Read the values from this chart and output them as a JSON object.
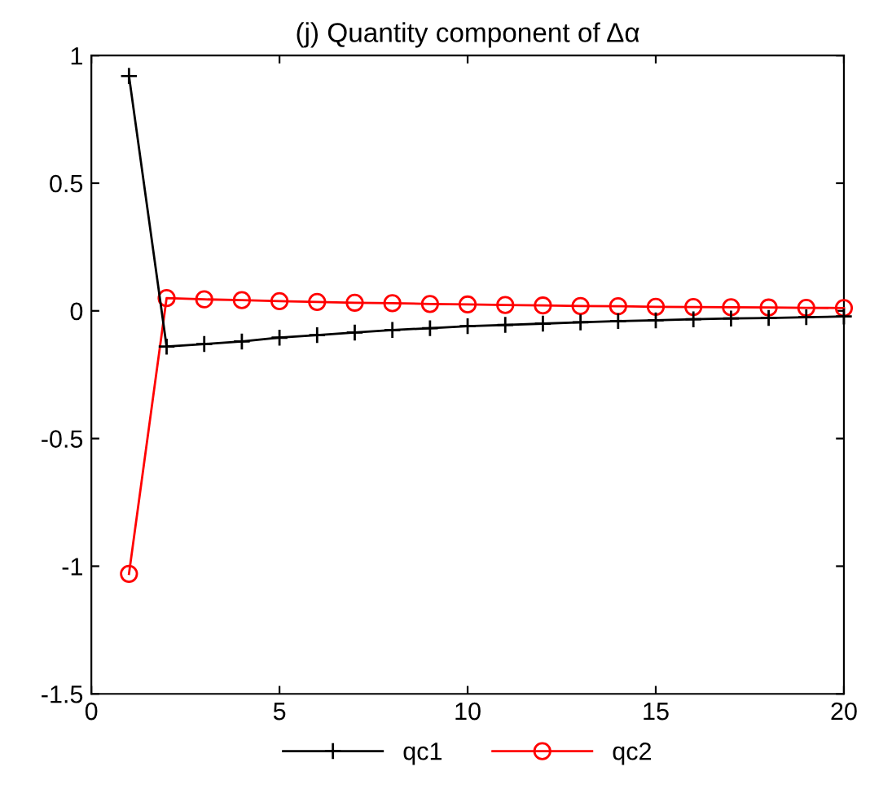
{
  "chart_data": {
    "type": "line",
    "title": "(j) Quantity component of Δα",
    "x": [
      1,
      2,
      3,
      4,
      5,
      6,
      7,
      8,
      9,
      10,
      11,
      12,
      13,
      14,
      15,
      16,
      17,
      18,
      19,
      20
    ],
    "series": [
      {
        "name": "qc1",
        "color": "#000000",
        "marker": "cross",
        "values": [
          0.92,
          -0.14,
          -0.13,
          -0.12,
          -0.105,
          -0.095,
          -0.085,
          -0.075,
          -0.068,
          -0.06,
          -0.055,
          -0.05,
          -0.045,
          -0.04,
          -0.037,
          -0.033,
          -0.03,
          -0.028,
          -0.025,
          -0.022
        ]
      },
      {
        "name": "qc2",
        "color": "#ff0000",
        "marker": "circle",
        "values": [
          -1.03,
          0.05,
          0.045,
          0.042,
          0.038,
          0.035,
          0.032,
          0.03,
          0.027,
          0.025,
          0.023,
          0.021,
          0.019,
          0.018,
          0.016,
          0.015,
          0.014,
          0.013,
          0.012,
          0.011
        ]
      }
    ],
    "xlim": [
      0,
      20
    ],
    "xticks": [
      0,
      5,
      10,
      15,
      20
    ],
    "ylim": [
      -1.5,
      1
    ],
    "yticks": [
      -1.5,
      -1,
      -0.5,
      0,
      0.5,
      1
    ],
    "grid": false,
    "legend": "bottom",
    "line_style": "solid"
  }
}
